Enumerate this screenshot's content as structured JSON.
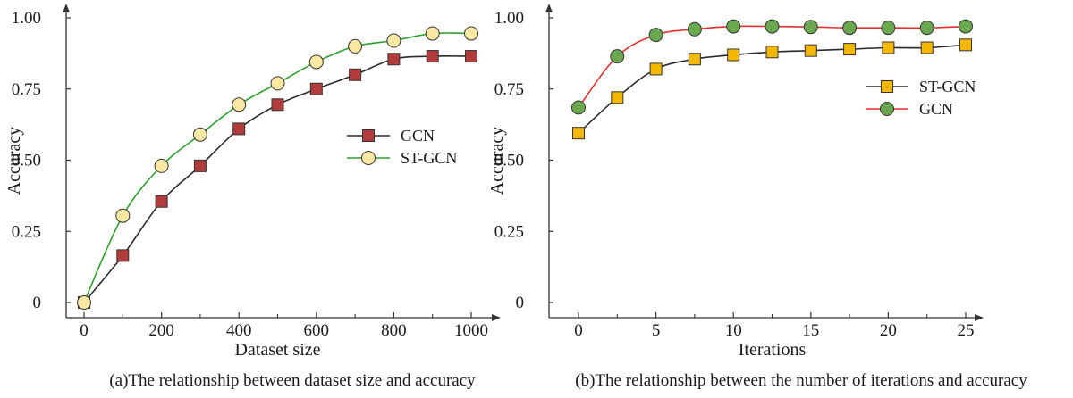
{
  "chart_data": [
    {
      "type": "line",
      "caption": "(a)The relationship between dataset size and accuracy",
      "xlabel": "Dataset size",
      "ylabel": "Accuracy",
      "xlim": [
        0,
        1000
      ],
      "ylim": [
        0,
        1.0
      ],
      "xticks": [
        "0",
        "200",
        "400",
        "600",
        "800",
        "1000"
      ],
      "yticks": [
        "0",
        "0.25",
        "0.50",
        "0.75",
        "1.00"
      ],
      "legend_position": "right",
      "x": [
        0,
        100,
        200,
        300,
        400,
        500,
        600,
        700,
        800,
        900,
        1000
      ],
      "series": [
        {
          "name": "GCN",
          "marker": "square",
          "line_color": "#2a2a2a",
          "marker_color": "#b23b3b",
          "values": [
            0.0,
            0.165,
            0.355,
            0.48,
            0.61,
            0.695,
            0.75,
            0.8,
            0.855,
            0.865,
            0.865
          ]
        },
        {
          "name": "ST-GCN",
          "marker": "circle",
          "line_color": "#2ca02c",
          "marker_color": "#fbe9a3",
          "values": [
            0.0,
            0.305,
            0.48,
            0.59,
            0.695,
            0.77,
            0.845,
            0.9,
            0.92,
            0.945,
            0.945
          ]
        }
      ]
    },
    {
      "type": "line",
      "caption": "(b)The relationship between the number of iterations and accuracy",
      "xlabel": "Iterations",
      "ylabel": "Accuracy",
      "xlim": [
        0,
        25
      ],
      "ylim": [
        0,
        1.0
      ],
      "xticks": [
        "0",
        "5",
        "10",
        "15",
        "20",
        "25"
      ],
      "yticks": [
        "0",
        "0.25",
        "0.50",
        "0.75",
        "1.00"
      ],
      "legend_position": "right",
      "x": [
        0,
        2.5,
        5,
        7.5,
        10,
        12.5,
        15,
        17.5,
        20,
        22.5,
        25
      ],
      "series": [
        {
          "name": "ST-GCN",
          "marker": "square",
          "line_color": "#2a2a2a",
          "marker_color": "#f5b800",
          "values": [
            0.595,
            0.72,
            0.82,
            0.855,
            0.87,
            0.88,
            0.885,
            0.89,
            0.895,
            0.895,
            0.905
          ]
        },
        {
          "name": "GCN",
          "marker": "circle",
          "line_color": "#e03030",
          "marker_color": "#6aa84f",
          "values": [
            0.685,
            0.865,
            0.94,
            0.96,
            0.97,
            0.97,
            0.968,
            0.965,
            0.965,
            0.965,
            0.97
          ]
        }
      ]
    }
  ]
}
